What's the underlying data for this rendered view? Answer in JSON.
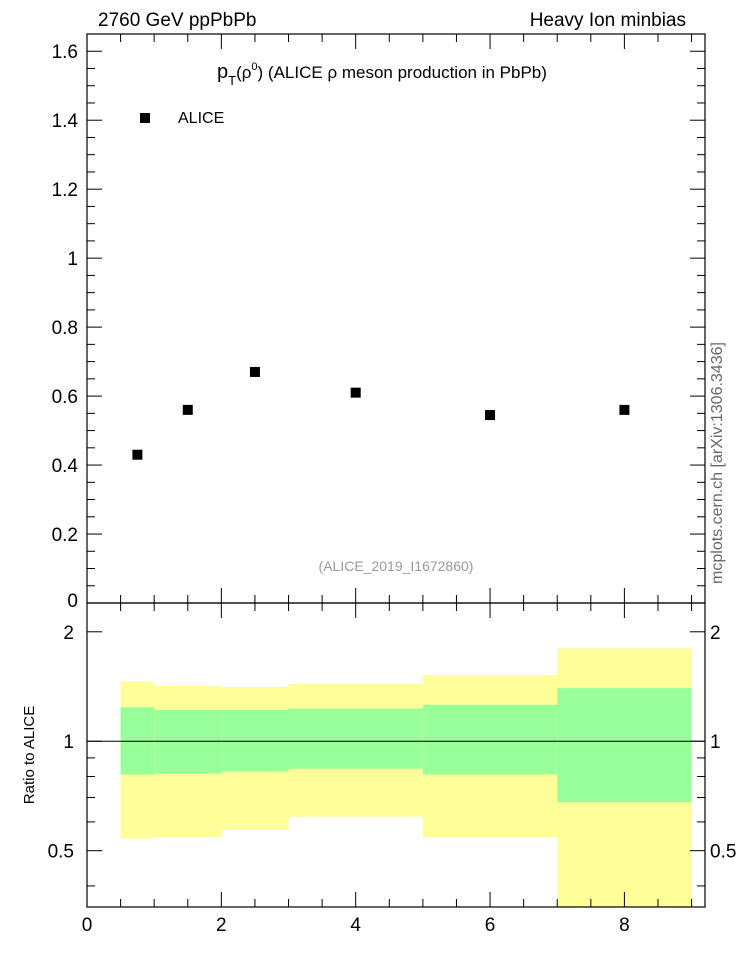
{
  "header": {
    "left": "2760 GeV ppPbPb",
    "right": "Heavy Ion minbias"
  },
  "side_label": "mcplots.cern.ch [arXiv:1306.3436]",
  "chart_data": [
    {
      "type": "scatter",
      "title_parts": {
        "p": "p",
        "sub": "T",
        "open": "(ρ",
        "sup": "0",
        "rest": ") (ALICE ρ meson production in PbPb)"
      },
      "legend": [
        "ALICE"
      ],
      "annotation": "(ALICE_2019_I1672860)",
      "xlim": [
        0,
        9.2
      ],
      "ylim": [
        0,
        1.65
      ],
      "yticks": [
        0,
        0.2,
        0.4,
        0.6,
        0.8,
        1,
        1.2,
        1.4,
        1.6
      ],
      "yticklabels": [
        "0",
        "0.2",
        "0.4",
        "0.6",
        "0.8",
        "1",
        "1.2",
        "1.4",
        "1.6"
      ],
      "series": [
        {
          "name": "ALICE",
          "x": [
            0.75,
            1.5,
            2.5,
            4,
            6,
            8
          ],
          "y": [
            0.43,
            0.56,
            0.67,
            0.61,
            0.545,
            0.56
          ]
        }
      ]
    },
    {
      "type": "area",
      "ylabel": "Ratio to ALICE",
      "xlim": [
        0,
        9.2
      ],
      "ylim": [
        0.35,
        2.4
      ],
      "yticks": [
        0.5,
        1,
        2
      ],
      "yticklabels": [
        "0.5",
        "1",
        "2"
      ],
      "xticks": [
        0,
        2,
        4,
        6,
        8
      ],
      "xticklabels": [
        "0",
        "2",
        "4",
        "6",
        "8"
      ],
      "reference_line": 1,
      "bands": {
        "bin_edges": [
          0.5,
          1.0,
          2.0,
          3.0,
          5.0,
          7.0,
          9.0
        ],
        "outer_low": [
          0.54,
          0.545,
          0.57,
          0.62,
          0.545,
          0.35
        ],
        "outer_high": [
          1.46,
          1.42,
          1.41,
          1.44,
          1.52,
          1.8
        ],
        "inner_low": [
          0.81,
          0.815,
          0.825,
          0.84,
          0.81,
          0.68
        ],
        "inner_high": [
          1.24,
          1.22,
          1.22,
          1.23,
          1.26,
          1.4
        ],
        "outer_color": "#ffff99",
        "inner_color": "#99ff99"
      }
    }
  ]
}
